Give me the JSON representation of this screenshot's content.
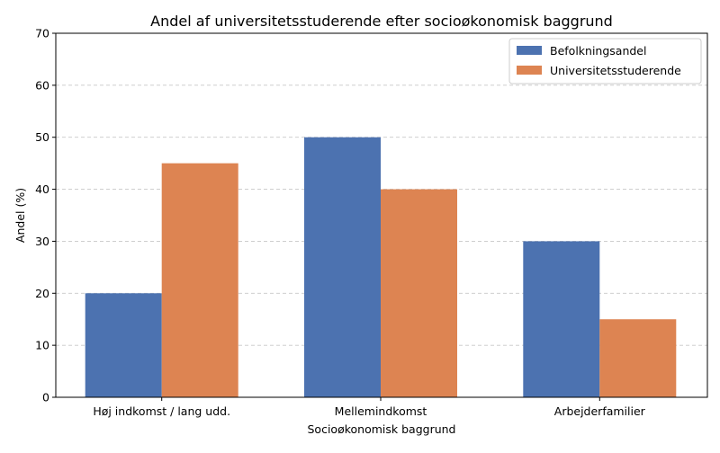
{
  "chart_data": {
    "type": "bar",
    "title": "Andel af universitetsstuderende efter socioøkonomisk baggrund",
    "xlabel": "Socioøkonomisk baggrund",
    "ylabel": "Andel (%)",
    "categories": [
      "Høj indkomst / lang udd.",
      "Mellemindkomst",
      "Arbejderfamilier"
    ],
    "series": [
      {
        "name": "Befolkningsandel",
        "values": [
          20,
          50,
          30
        ],
        "color": "#4c72b0"
      },
      {
        "name": "Universitetsstuderende",
        "values": [
          45,
          40,
          15
        ],
        "color": "#dd8452"
      }
    ],
    "ylim": [
      0,
      70
    ],
    "yticks": [
      0,
      10,
      20,
      30,
      40,
      50,
      60,
      70
    ],
    "grid": "y-dashed",
    "legend_position": "top-right"
  }
}
